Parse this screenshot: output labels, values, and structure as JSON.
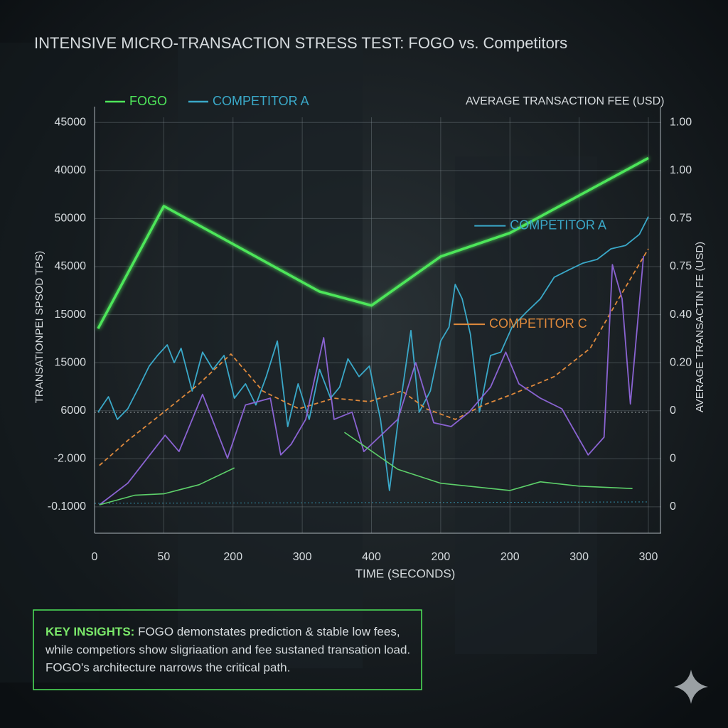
{
  "chart_data": {
    "type": "line",
    "title": "INTENSIVE MICRO-TRANSACTION STRESS TEST: FOGO vs. Competitors",
    "y_label": "TRANSATIONPEI SPSOD TPS)",
    "y2_label": "AVERAGE TRANSACTIN FE (USD)",
    "y2_title": "AVERAGE TRANSACTION FEE (USD)",
    "x_label": "TIME (SECONDS)",
    "xlim": [
      0,
      8
    ],
    "xticks": [
      0,
      {
        "value": 1,
        "label": "50"
      },
      {
        "value": 2,
        "label": "200"
      },
      {
        "value": 3,
        "label": "300"
      },
      {
        "value": 4,
        "label": "400"
      },
      {
        "value": 5,
        "label": "200"
      },
      {
        "value": 6,
        "label": "200"
      },
      {
        "value": 7,
        "label": "300"
      },
      {
        "value": 8,
        "label": "300"
      }
    ],
    "ylim": [
      -0.55,
      8.33
    ],
    "yticks": [
      {
        "value": 8,
        "label": "45000"
      },
      {
        "value": 7,
        "label": "40000"
      },
      {
        "value": 6,
        "label": "50000"
      },
      {
        "value": 5,
        "label": "45000"
      },
      {
        "value": 4,
        "label": "15000"
      },
      {
        "value": 3,
        "label": "15000"
      },
      {
        "value": 2,
        "label": "6000"
      },
      {
        "value": 1,
        "label": "-2.000"
      },
      {
        "value": 0,
        "label": "-0.1000"
      }
    ],
    "y2lim": [
      -0.55,
      8.33
    ],
    "y2ticks": [
      {
        "value": 8,
        "label": "1.00"
      },
      {
        "value": 7,
        "label": "1.00"
      },
      {
        "value": 6,
        "label": "0.75"
      },
      {
        "value": 5,
        "label": "0.75"
      },
      {
        "value": 4,
        "label": "0.40"
      },
      {
        "value": 3,
        "label": "0.20"
      },
      {
        "value": 2,
        "label": "0"
      },
      {
        "value": 1,
        "label": "0"
      },
      {
        "value": 0,
        "label": "0"
      }
    ],
    "grid": true,
    "legend": "top-left",
    "series": [
      {
        "name": "FOGO",
        "color": "#4ee65a",
        "width": 3.5,
        "x": [
          0.05,
          1.0,
          3.25,
          4.0,
          5.0,
          6.0,
          8.0
        ],
        "values": [
          3.71,
          6.26,
          4.48,
          4.19,
          5.21,
          5.7,
          7.26
        ]
      },
      {
        "name": "COMPETITOR A",
        "color": "#3aa8c8",
        "width": 1.8,
        "x": [
          0.05,
          0.2,
          0.33,
          0.48,
          0.64,
          0.79,
          0.91,
          1.05,
          1.15,
          1.25,
          1.41,
          1.56,
          1.71,
          1.87,
          2.02,
          2.18,
          2.33,
          2.48,
          2.64,
          2.79,
          2.94,
          3.1,
          3.25,
          3.41,
          3.54,
          3.66,
          3.82,
          3.97,
          4.13,
          4.26,
          4.4,
          4.57,
          4.69,
          4.85,
          5.0,
          5.12,
          5.21,
          5.31,
          5.43,
          5.56,
          5.72,
          5.87,
          6.03,
          6.23,
          6.44,
          6.64,
          6.85,
          7.05,
          7.26,
          7.46,
          7.67,
          7.87,
          8.0
        ],
        "values": [
          1.97,
          2.29,
          1.82,
          2.04,
          2.49,
          2.93,
          3.15,
          3.37,
          3.0,
          3.3,
          2.41,
          3.22,
          2.86,
          3.15,
          2.26,
          2.56,
          2.12,
          2.71,
          3.45,
          1.67,
          2.56,
          1.82,
          2.86,
          2.26,
          2.49,
          3.08,
          2.71,
          2.93,
          1.82,
          0.34,
          1.97,
          3.67,
          1.97,
          2.41,
          3.45,
          3.74,
          4.63,
          4.33,
          3.59,
          1.97,
          3.15,
          3.22,
          3.74,
          4.04,
          4.33,
          4.78,
          4.93,
          5.07,
          5.15,
          5.37,
          5.44,
          5.67,
          6.04
        ]
      },
      {
        "color": "#e08a3c",
        "width": 1.8,
        "style": "dashed",
        "x": [
          0.07,
          0.48,
          1.0,
          1.51,
          1.97,
          2.43,
          2.95,
          3.46,
          3.97,
          4.44,
          4.79,
          5.21,
          5.62,
          6.03,
          6.64,
          7.16,
          7.57,
          8.0
        ],
        "values": [
          0.86,
          1.38,
          1.97,
          2.56,
          3.18,
          2.41,
          2.04,
          2.26,
          2.19,
          2.41,
          2.04,
          1.82,
          2.12,
          2.34,
          2.71,
          3.3,
          4.33,
          5.37
        ]
      },
      {
        "color": "#8a63d2",
        "width": 1.8,
        "x": [
          0.07,
          0.48,
          1.02,
          1.22,
          1.56,
          1.92,
          2.18,
          2.54,
          2.69,
          2.84,
          3.05,
          3.31,
          3.46,
          3.72,
          3.89,
          4.38,
          4.64,
          4.9,
          5.15,
          5.41,
          5.72,
          5.94,
          6.13,
          6.44,
          6.75,
          7.13,
          7.36,
          7.48,
          7.62,
          7.74,
          7.93
        ],
        "values": [
          0.04,
          0.49,
          1.49,
          1.15,
          2.34,
          1.01,
          2.12,
          2.26,
          1.08,
          1.3,
          1.82,
          3.52,
          1.82,
          1.97,
          1.15,
          1.82,
          3.0,
          1.75,
          1.67,
          1.97,
          2.49,
          3.22,
          2.56,
          2.26,
          2.04,
          1.08,
          1.45,
          5.04,
          4.33,
          2.14,
          5.22
        ]
      },
      {
        "color": "#5dd06a",
        "width": 1.6,
        "x": [
          0.07,
          0.58,
          1.0,
          1.51,
          2.02,
          3.0,
          3.61,
          4.38,
          5.0,
          6.0,
          6.44,
          7.0,
          7.77
        ],
        "values": [
          0.04,
          0.24,
          0.27,
          0.46,
          0.81,
          null,
          1.55,
          0.78,
          0.49,
          0.34,
          0.52,
          0.43,
          0.38
        ]
      }
    ],
    "annotations": [
      {
        "text": "COMPETITOR A",
        "x": 6.0,
        "y": 5.85,
        "color": "#3aa8c8"
      },
      {
        "text": "COMPETITOR C",
        "x": 5.7,
        "y": 3.8,
        "color": "#e08a3c"
      }
    ]
  },
  "insights": {
    "heading": "KEY INSIGHTS:",
    "lines": [
      "FOGO demonstates prediction & stable low fees,",
      "while competiors show sligriaation and fee sustaned transation load.",
      "FOGO's architecture narrows the critical path."
    ]
  }
}
